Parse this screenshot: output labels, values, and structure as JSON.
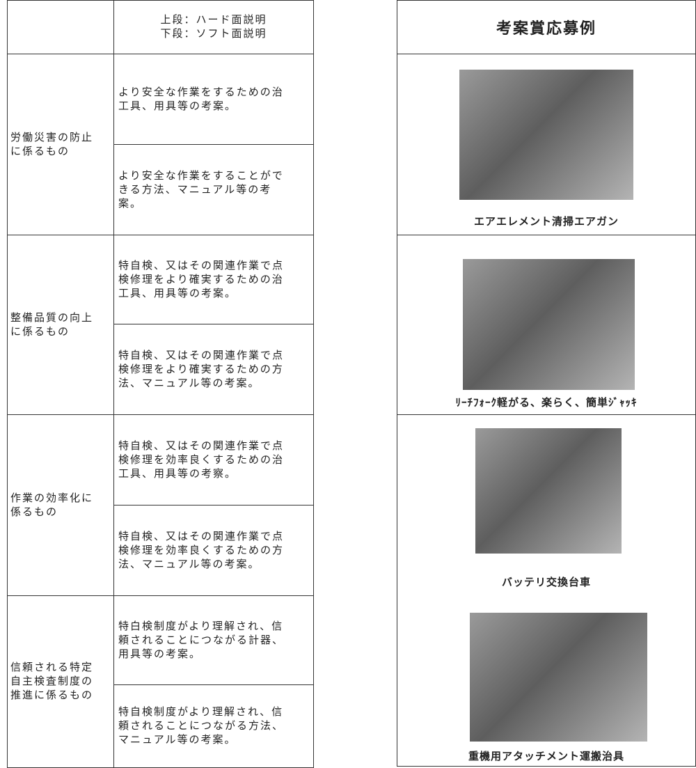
{
  "table": {
    "header": [
      "上段：ハード面説明",
      "下段：ソフト面説明"
    ],
    "rows": [
      {
        "category": [
          "労働災害の防止",
          "に係るもの"
        ],
        "items": [
          [
            "より安全な作業をするための治",
            "工具、用具等の考案。"
          ],
          [
            "より安全な作業をすることがで",
            "きる方法、マニュアル等の考",
            "案。"
          ]
        ]
      },
      {
        "category": [
          "整備品質の向上",
          "に係るもの"
        ],
        "items": [
          [
            "特自検、又はその関連作業で点",
            "検修理をより確実するための治",
            "工具、用具等の考案。"
          ],
          [
            "特自検、又はその関連作業で点",
            "検修理をより確実するための方",
            "法、マニュアル等の考案。"
          ]
        ]
      },
      {
        "category": [
          "作業の効率化に",
          "係るもの"
        ],
        "items": [
          [
            "特自検、又はその関連作業で点",
            "検修理を効率良くするための治",
            "工具、用具等の考察。"
          ],
          [
            "特自検、又はその関連作業で点",
            "検修理を効率良くするための方",
            "法、マニュアル等の考案。"
          ]
        ]
      },
      {
        "category": [
          "信頼される特定",
          "自主検査制度の",
          "推進に係るもの"
        ],
        "items": [
          [
            "特白検制度がより理解され、信",
            "頼されることにつながる計器、",
            "用具等の考案。"
          ],
          [
            "特自検制度がより理解され、信",
            "頼されることにつながる方法、",
            "マニュアル等の考案。"
          ]
        ]
      }
    ]
  },
  "examples": {
    "title": "考案賞応募例",
    "captions": [
      "エアエレメント清掃エアガン",
      "ﾘｰﾁﾌｫｰｸ軽がる、楽らく、簡単ｼﾞｬｯｷ",
      "バッテリ交換台車",
      "重機用アタッチメント運搬治具"
    ]
  }
}
